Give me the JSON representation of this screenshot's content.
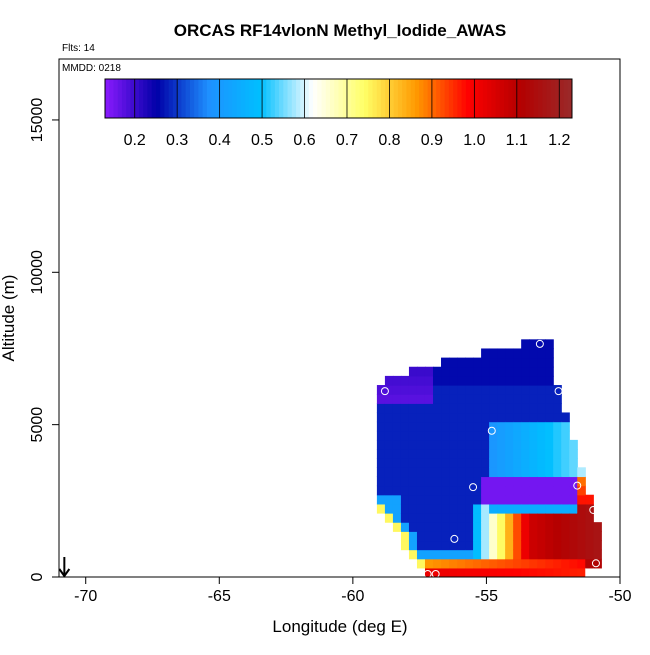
{
  "header": {
    "title": "ORCAS RF14vlonN Methyl_Iodide_AWAS",
    "flts": "Flts: 14",
    "mmdd": "MMDD: 0218"
  },
  "chart_data": {
    "type": "heatmap",
    "title": "ORCAS RF14vlonN Methyl_Iodide_AWAS",
    "xlabel": "Longitude (deg E)",
    "ylabel": "Altitude (m)",
    "xlim": [
      -71,
      -50
    ],
    "ylim": [
      0,
      17000
    ],
    "x_ticks": [
      -70,
      -65,
      -60,
      -55,
      -50
    ],
    "y_ticks": [
      0,
      5000,
      10000,
      15000
    ],
    "x_tick_labels": [
      "-70",
      "-65",
      "-60",
      "-55",
      "-50"
    ],
    "y_tick_labels": [
      "0",
      "5000",
      "10000",
      "15000"
    ],
    "colorbar": {
      "min": 0.13,
      "max": 1.23,
      "ticks": [
        0.2,
        0.3,
        0.4,
        0.5,
        0.6,
        0.7,
        0.8,
        0.9,
        1.0,
        1.1,
        1.2
      ],
      "tick_labels": [
        "0.2",
        "0.3",
        "0.4",
        "0.5",
        "0.6",
        "0.7",
        "0.8",
        "0.9",
        "1.0",
        "1.1",
        "1.2"
      ],
      "colors": [
        "#8b1aff",
        "#0000a8",
        "#1e90ff",
        "#00bfff",
        "#ffffff",
        "#ffff66",
        "#ff9900",
        "#ff0000",
        "#b40000",
        "#9a2a2a"
      ]
    },
    "samples": [
      {
        "lon": -53.0,
        "alt": 7650
      },
      {
        "lon": -58.8,
        "alt": 6100
      },
      {
        "lon": -52.3,
        "alt": 6100
      },
      {
        "lon": -54.8,
        "alt": 4800
      },
      {
        "lon": -51.0,
        "alt": 3950
      },
      {
        "lon": -55.5,
        "alt": 2950
      },
      {
        "lon": -51.6,
        "alt": 3000
      },
      {
        "lon": -51.0,
        "alt": 2200
      },
      {
        "lon": -56.2,
        "alt": 1250
      },
      {
        "lon": -50.9,
        "alt": 450
      },
      {
        "lon": -57.2,
        "alt": 100
      },
      {
        "lon": -56.9,
        "alt": 100
      },
      {
        "lon": -50.9,
        "alt": 100
      }
    ],
    "grid": false,
    "legend": "colorbar-top-inside",
    "flight_marker_lon": -70.8
  }
}
